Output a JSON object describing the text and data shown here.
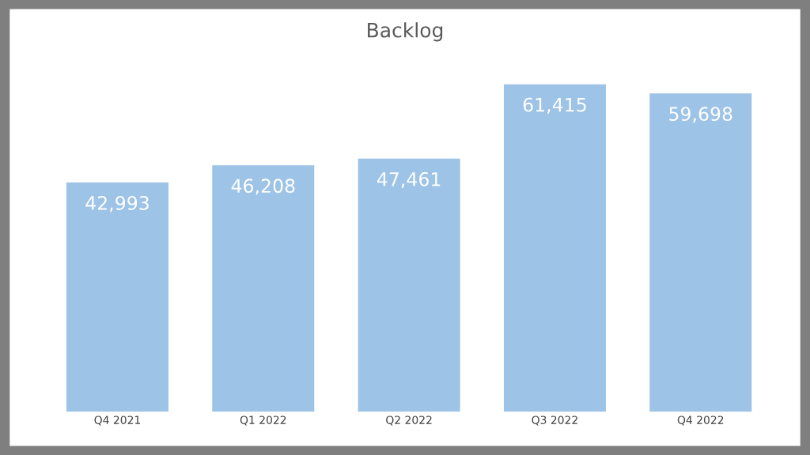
{
  "chart_data": {
    "type": "bar",
    "title": "Backlog",
    "categories": [
      "Q4 2021",
      "Q1 2022",
      "Q2 2022",
      "Q3 2022",
      "Q4 2022"
    ],
    "values": [
      42993,
      46208,
      47461,
      61415,
      59698
    ],
    "value_labels": [
      "42,993",
      "46,208",
      "47,461",
      "61,415",
      "59,698"
    ],
    "color": "#9dc3e6",
    "grid": false,
    "legend": false
  }
}
